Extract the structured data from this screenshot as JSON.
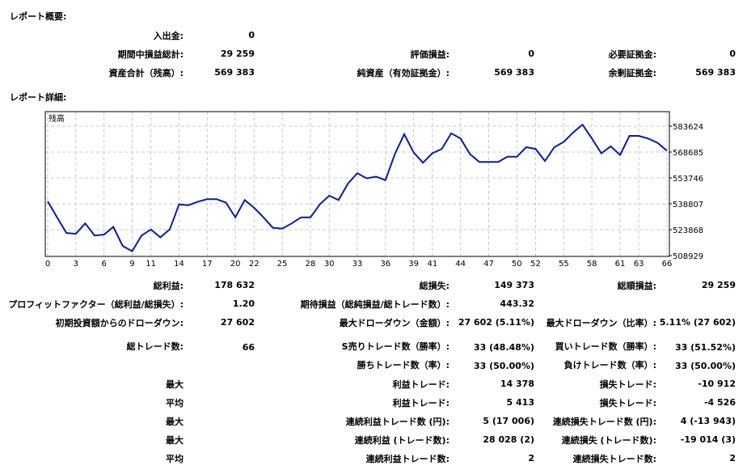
{
  "summary": {
    "title": "レポート概要:",
    "rows": [
      {
        "label": "入出金:",
        "value": "0"
      },
      {
        "label": "期間中損益総計:",
        "value": "29 259"
      },
      {
        "label": "資産合計（残高）:",
        "value": "569 383"
      }
    ],
    "mid": [
      {
        "label": "評価損益:",
        "value": "0"
      },
      {
        "label": "純資産（有効証拠金）:",
        "value": "569 383"
      }
    ],
    "right": [
      {
        "label": "必要証拠金:",
        "value": "0"
      },
      {
        "label": "余剰証拠金:",
        "value": "569 383"
      }
    ]
  },
  "details": {
    "title": "レポート詳細:"
  },
  "chart_data": {
    "type": "line",
    "title": "",
    "series_label": "残高",
    "xlabel": "",
    "ylabel": "",
    "x_ticks": [
      "0",
      "3",
      "6",
      "9",
      "11",
      "14",
      "17",
      "20",
      "22",
      "25",
      "28",
      "30",
      "33",
      "36",
      "39",
      "41",
      "44",
      "47",
      "50",
      "52",
      "55",
      "58",
      "61",
      "63",
      "66"
    ],
    "y_ticks": [
      "583624",
      "568685",
      "553746",
      "538807",
      "523868",
      "508929"
    ],
    "ylim": [
      508929,
      591000
    ],
    "xlim": [
      0,
      66
    ],
    "grid": true,
    "color": "#0a1aa8",
    "series": [
      {
        "name": "残高",
        "values": [
          540267,
          531000,
          522000,
          521500,
          527500,
          520500,
          521000,
          525500,
          514500,
          511500,
          520500,
          524000,
          519500,
          524000,
          538500,
          538000,
          540000,
          541500,
          541500,
          539500,
          531000,
          541000,
          536500,
          531000,
          525000,
          524500,
          527500,
          531000,
          531000,
          538500,
          543500,
          541000,
          550500,
          556500,
          553500,
          554500,
          552500,
          567500,
          579000,
          568500,
          562500,
          568000,
          570500,
          579500,
          576500,
          567500,
          563000,
          563000,
          563000,
          566000,
          566000,
          571500,
          570500,
          563500,
          571500,
          574500,
          580000,
          584500,
          576500,
          568000,
          572000,
          567000,
          578000,
          578000,
          576500,
          574000,
          569500
        ]
      }
    ]
  },
  "stats": {
    "col1": [
      {
        "label": "総利益:",
        "value": "178 632"
      },
      {
        "label": "プロフィットファクター（総利益/総損失）:",
        "value": "1.20"
      },
      {
        "label": "初期投資額からのドローダウン:",
        "value": "27 602"
      },
      {
        "label": "総トレード数:",
        "value": "66"
      }
    ],
    "col2": [
      {
        "label": "総損失:",
        "value": "149 373"
      },
      {
        "label": "期待損益（総純損益/総トレード数）:",
        "value": "443.32"
      },
      {
        "label": "最大ドローダウン（金額）:",
        "value": "27 602 (5.11%)"
      },
      {
        "label": "S売りトレード数（勝率）:",
        "value": "33 (48.48%)"
      },
      {
        "label": "勝ちトレード数（率）:",
        "value": "33 (50.00%)"
      }
    ],
    "col3": [
      {
        "label": "総順損益:",
        "value": "29 259"
      },
      {
        "label": "最大ドローダウン（比率）:",
        "value": "5.11% (27 602)"
      },
      {
        "label": "買いトレード数（勝率）:",
        "value": "33 (51.52%)"
      },
      {
        "label": "負けトレード数（率）:",
        "value": "33 (50.00%)"
      }
    ],
    "bottom": [
      {
        "prefix": "最大",
        "label_a": "利益トレード:",
        "value_a": "14 378",
        "label_b": "損失トレード:",
        "value_b": "-10 912"
      },
      {
        "prefix": "平均",
        "label_a": "利益トレード:",
        "value_a": "5 413",
        "label_b": "損失トレード:",
        "value_b": "-4 526"
      },
      {
        "prefix": "最大",
        "label_a": "連続利益トレード数 (円):",
        "value_a": "5 (17 006)",
        "label_b": "連続損失トレード数 (円):",
        "value_b": "4 (-13 943)"
      },
      {
        "prefix": "最大",
        "label_a": "連続利益 (トレード数):",
        "value_a": "28 028 (2)",
        "label_b": "連続損失 (トレード数):",
        "value_b": "-19 014 (3)"
      },
      {
        "prefix": "平均",
        "label_a": "連続利益トレード数:",
        "value_a": "2",
        "label_b": "連続損失トレード数:",
        "value_b": "2"
      }
    ]
  }
}
